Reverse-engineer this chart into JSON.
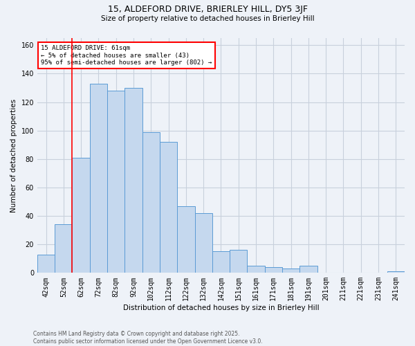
{
  "title_line1": "15, ALDEFORD DRIVE, BRIERLEY HILL, DY5 3JF",
  "title_line2": "Size of property relative to detached houses in Brierley Hill",
  "xlabel": "Distribution of detached houses by size in Brierley Hill",
  "ylabel": "Number of detached properties",
  "footer_line1": "Contains HM Land Registry data © Crown copyright and database right 2025.",
  "footer_line2": "Contains public sector information licensed under the Open Government Licence v3.0.",
  "categories": [
    "42sqm",
    "52sqm",
    "62sqm",
    "72sqm",
    "82sqm",
    "92sqm",
    "102sqm",
    "112sqm",
    "122sqm",
    "132sqm",
    "142sqm",
    "151sqm",
    "161sqm",
    "171sqm",
    "181sqm",
    "191sqm",
    "201sqm",
    "211sqm",
    "221sqm",
    "231sqm",
    "241sqm"
  ],
  "values": [
    13,
    34,
    81,
    133,
    128,
    130,
    99,
    92,
    47,
    42,
    15,
    16,
    5,
    4,
    3,
    5,
    0,
    0,
    0,
    0,
    1
  ],
  "bar_color": "#c5d8ee",
  "bar_edge_color": "#5b9bd5",
  "red_line_index": 1.5,
  "annotation_text": "15 ALDEFORD DRIVE: 61sqm\n← 5% of detached houses are smaller (43)\n95% of semi-detached houses are larger (802) →",
  "annotation_box_color": "white",
  "annotation_box_edge_color": "red",
  "red_line_color": "red",
  "ylim": [
    0,
    165
  ],
  "yticks": [
    0,
    20,
    40,
    60,
    80,
    100,
    120,
    140,
    160
  ],
  "grid_color": "#c8d0dc",
  "bg_color": "#eef2f8",
  "title_fontsize": 9,
  "subtitle_fontsize": 7.5,
  "xlabel_fontsize": 7.5,
  "ylabel_fontsize": 7.5,
  "tick_fontsize": 7,
  "annotation_fontsize": 6.5,
  "footer_fontsize": 5.5
}
